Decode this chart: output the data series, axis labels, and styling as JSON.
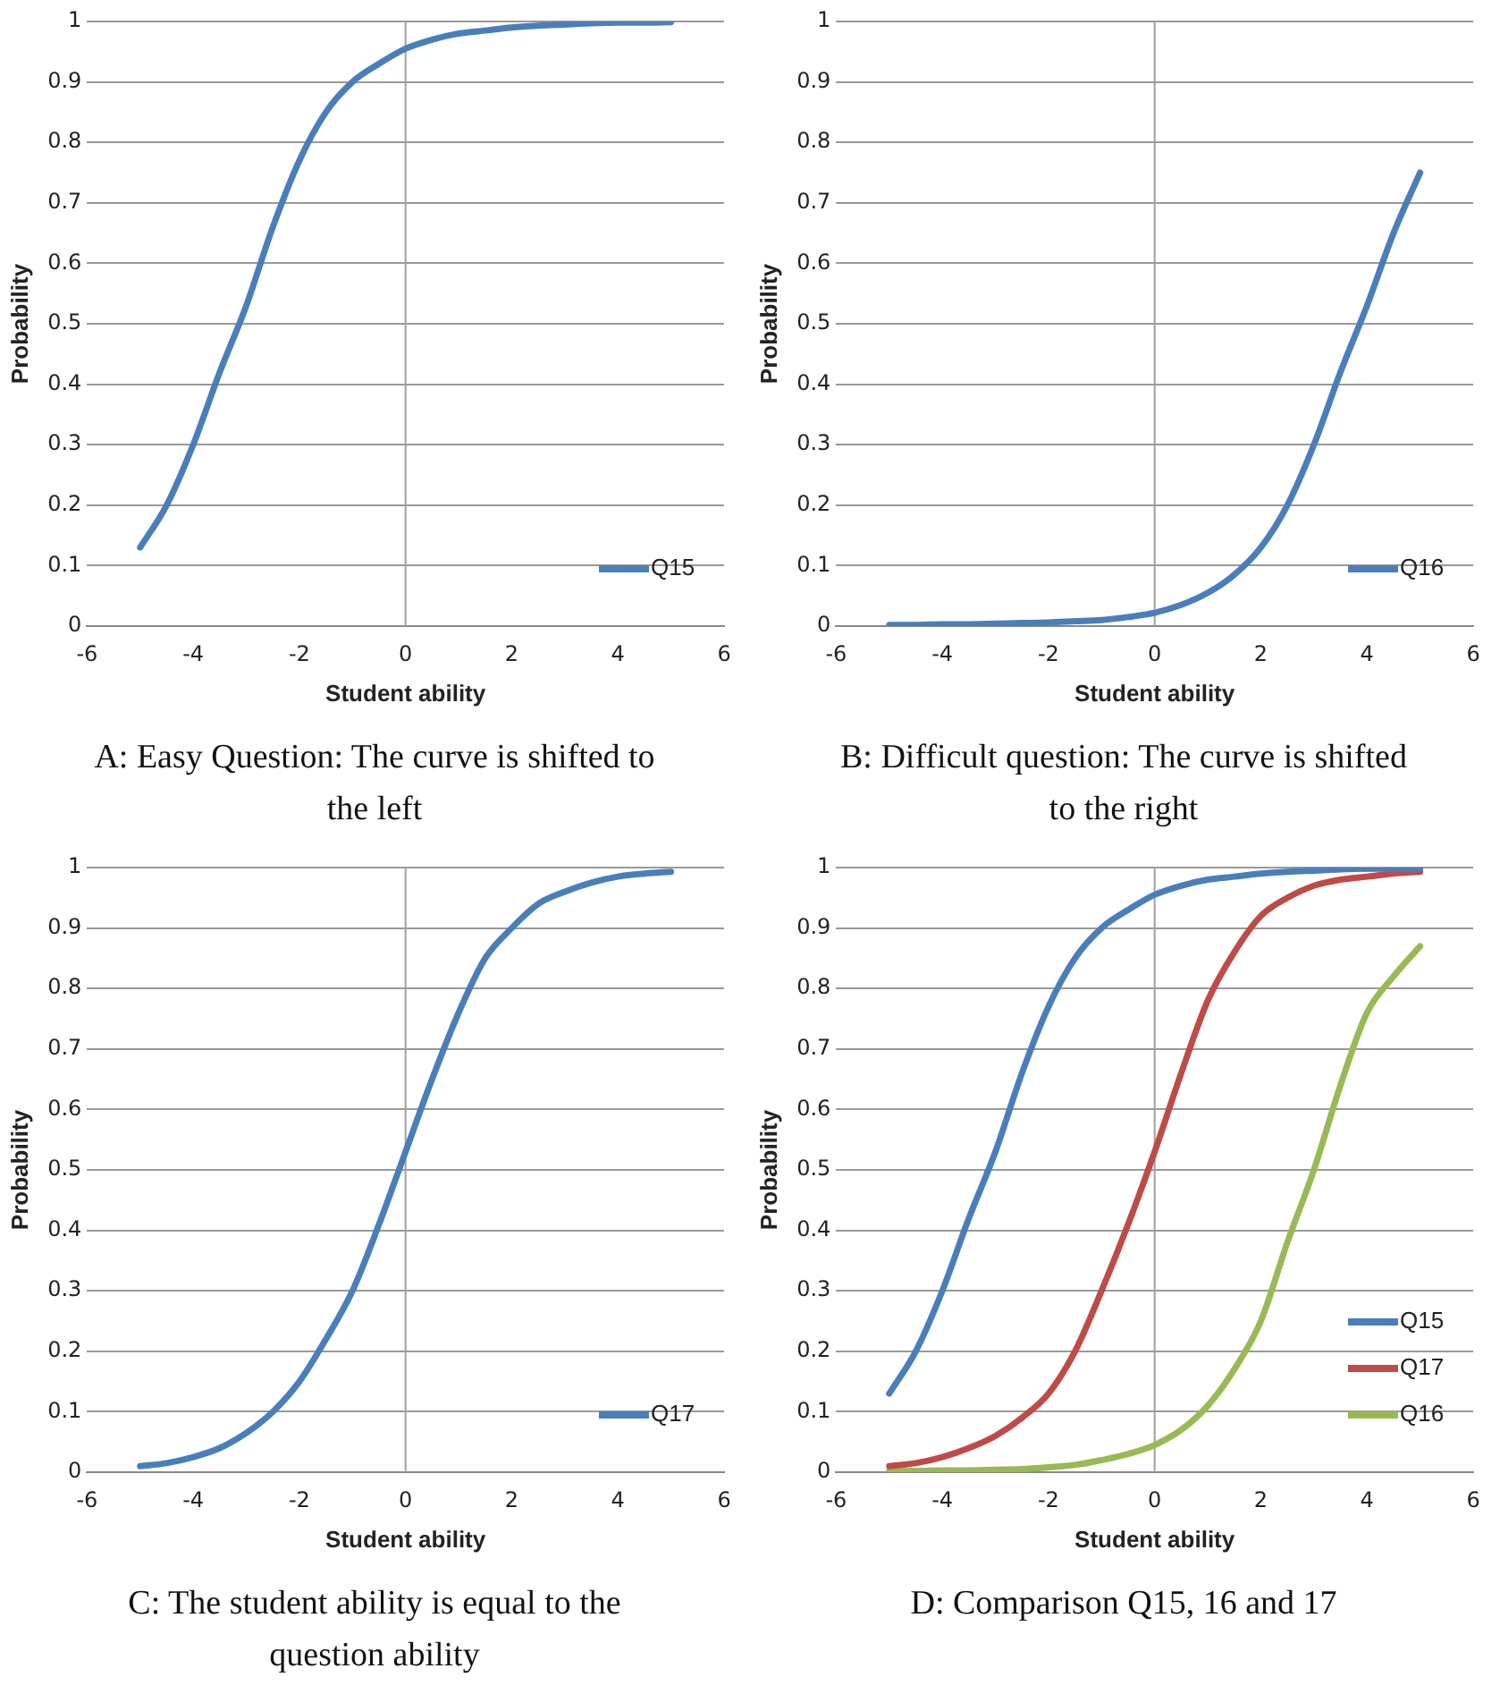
{
  "chart_data": [
    {
      "type": "line",
      "xlabel": "Student ability",
      "ylabel": "Probability",
      "x": [
        -5,
        -4.5,
        -4,
        -3.5,
        -3,
        -2.5,
        -2,
        -1.5,
        -1,
        -0.5,
        0,
        0.5,
        1,
        1.5,
        2,
        2.5,
        3,
        3.5,
        4,
        4.5,
        5
      ],
      "series": [
        {
          "name": "Q15",
          "color": "#4a7ebb",
          "values": [
            0.13,
            0.2,
            0.3,
            0.42,
            0.53,
            0.66,
            0.77,
            0.85,
            0.9,
            0.93,
            0.955,
            0.97,
            0.98,
            0.985,
            0.99,
            0.993,
            0.995,
            0.997,
            0.998,
            0.998,
            0.999
          ]
        }
      ],
      "xlim": [
        -6,
        6
      ],
      "xticks": [
        -6,
        -4,
        -2,
        0,
        2,
        4,
        6
      ],
      "ylim": [
        0,
        1
      ],
      "yticks": [
        0,
        0.1,
        0.2,
        0.3,
        0.4,
        0.5,
        0.6,
        0.7,
        0.8,
        0.9,
        1
      ],
      "grid": "y",
      "legend": "bottom right",
      "marker": "none",
      "ref_lines": [
        {
          "axis": "x",
          "value": 0,
          "color": "#a0a0a0"
        }
      ],
      "annotations": [
        "A: Easy Question: The curve is shifted to the left"
      ]
    },
    {
      "type": "line",
      "xlabel": "Student ability",
      "ylabel": "Probability",
      "x": [
        -5,
        -4.5,
        -4,
        -3.5,
        -3,
        -2.5,
        -2,
        -1.5,
        -1,
        -0.5,
        0,
        0.5,
        1,
        1.5,
        2,
        2.5,
        3,
        3.5,
        4,
        4.5,
        5
      ],
      "series": [
        {
          "name": "Q16",
          "color": "#4a7ebb",
          "values": [
            0.002,
            0.002,
            0.003,
            0.003,
            0.004,
            0.005,
            0.006,
            0.008,
            0.01,
            0.015,
            0.022,
            0.035,
            0.055,
            0.085,
            0.13,
            0.2,
            0.3,
            0.42,
            0.53,
            0.65,
            0.75
          ]
        }
      ],
      "xlim": [
        -6,
        6
      ],
      "xticks": [
        -6,
        -4,
        -2,
        0,
        2,
        4,
        6
      ],
      "ylim": [
        0,
        1
      ],
      "yticks": [
        0,
        0.1,
        0.2,
        0.3,
        0.4,
        0.5,
        0.6,
        0.7,
        0.8,
        0.9,
        1
      ],
      "grid": "y",
      "legend": "bottom right",
      "marker": "none",
      "ref_lines": [
        {
          "axis": "x",
          "value": 0,
          "color": "#a0a0a0"
        }
      ],
      "annotations": [
        "B: Difficult question: The curve is shifted to the  right"
      ]
    },
    {
      "type": "line",
      "xlabel": "Student ability",
      "ylabel": "Probability",
      "x": [
        -5,
        -4.5,
        -4,
        -3.5,
        -3,
        -2.5,
        -2,
        -1.5,
        -1,
        -0.5,
        0,
        0.5,
        1,
        1.5,
        2,
        2.5,
        3,
        3.5,
        4,
        4.5,
        5
      ],
      "series": [
        {
          "name": "Q17",
          "color": "#4a7ebb",
          "values": [
            0.01,
            0.015,
            0.025,
            0.04,
            0.065,
            0.1,
            0.15,
            0.22,
            0.3,
            0.41,
            0.53,
            0.65,
            0.76,
            0.85,
            0.9,
            0.94,
            0.96,
            0.975,
            0.985,
            0.99,
            0.993
          ]
        }
      ],
      "xlim": [
        -6,
        6
      ],
      "xticks": [
        -6,
        -4,
        -2,
        0,
        2,
        4,
        6
      ],
      "ylim": [
        0,
        1
      ],
      "yticks": [
        0,
        0.1,
        0.2,
        0.3,
        0.4,
        0.5,
        0.6,
        0.7,
        0.8,
        0.9,
        1
      ],
      "grid": "y",
      "legend": "bottom right",
      "marker": "none",
      "ref_lines": [
        {
          "axis": "x",
          "value": 0,
          "color": "#a0a0a0"
        }
      ],
      "annotations": [
        "C: The student ability is equal to the question ability"
      ]
    },
    {
      "type": "line",
      "xlabel": "Student ability",
      "ylabel": "Probability",
      "x": [
        -5,
        -4.5,
        -4,
        -3.5,
        -3,
        -2.5,
        -2,
        -1.5,
        -1,
        -0.5,
        0,
        0.5,
        1,
        1.5,
        2,
        2.5,
        3,
        3.5,
        4,
        4.5,
        5
      ],
      "series": [
        {
          "name": "Q15",
          "color": "#4a7ebb",
          "values": [
            0.13,
            0.2,
            0.3,
            0.42,
            0.53,
            0.66,
            0.77,
            0.85,
            0.9,
            0.93,
            0.955,
            0.97,
            0.98,
            0.985,
            0.99,
            0.993,
            0.995,
            0.997,
            0.998,
            0.998,
            0.999
          ]
        },
        {
          "name": "Q17",
          "color": "#be4b48",
          "values": [
            0.01,
            0.015,
            0.025,
            0.04,
            0.06,
            0.09,
            0.13,
            0.2,
            0.3,
            0.41,
            0.53,
            0.66,
            0.78,
            0.86,
            0.92,
            0.95,
            0.97,
            0.98,
            0.985,
            0.99,
            0.993
          ]
        },
        {
          "name": "Q16",
          "color": "#98b954",
          "values": [
            0.002,
            0.002,
            0.003,
            0.003,
            0.004,
            0.005,
            0.008,
            0.012,
            0.02,
            0.03,
            0.045,
            0.07,
            0.11,
            0.17,
            0.25,
            0.38,
            0.5,
            0.64,
            0.76,
            0.82,
            0.87
          ]
        }
      ],
      "xlim": [
        -6,
        6
      ],
      "xticks": [
        -6,
        -4,
        -2,
        0,
        2,
        4,
        6
      ],
      "ylim": [
        0,
        1
      ],
      "yticks": [
        0,
        0.1,
        0.2,
        0.3,
        0.4,
        0.5,
        0.6,
        0.7,
        0.8,
        0.9,
        1
      ],
      "grid": "y",
      "legend": "bottom right",
      "marker": "none",
      "ref_lines": [
        {
          "axis": "x",
          "value": 0,
          "color": "#a0a0a0"
        }
      ],
      "annotations": [
        "D: Comparison Q15, 16 and 17"
      ]
    }
  ]
}
